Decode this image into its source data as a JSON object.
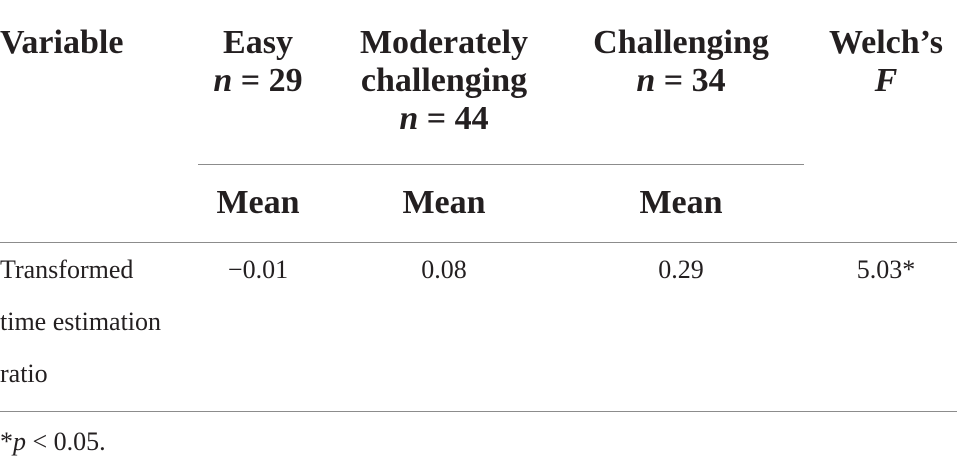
{
  "table": {
    "headers": {
      "variable": "Variable",
      "easy": {
        "label": "Easy",
        "n_symbol": "n",
        "n_value": " = 29"
      },
      "moderate": {
        "label_line1": "Moderately",
        "label_line2": "challenging",
        "n_symbol": "n",
        "n_value": " = 44"
      },
      "challenging": {
        "label": "Challenging",
        "n_symbol": "n",
        "n_value": " = 34"
      },
      "welch": {
        "label": "Welch’s",
        "symbol": "F"
      }
    },
    "subheaders": {
      "easy": "Mean",
      "moderate": "Mean",
      "challenging": "Mean"
    },
    "rows": [
      {
        "variable_line1": "Transformed",
        "variable_line2": "time estimation",
        "variable_line3": "ratio",
        "easy": "−0.01",
        "moderate": "0.08",
        "challenging": "0.29",
        "welch": "5.03*"
      }
    ]
  },
  "footnote": {
    "marker": "*",
    "symbol": "p",
    "text": " < 0.05."
  }
}
